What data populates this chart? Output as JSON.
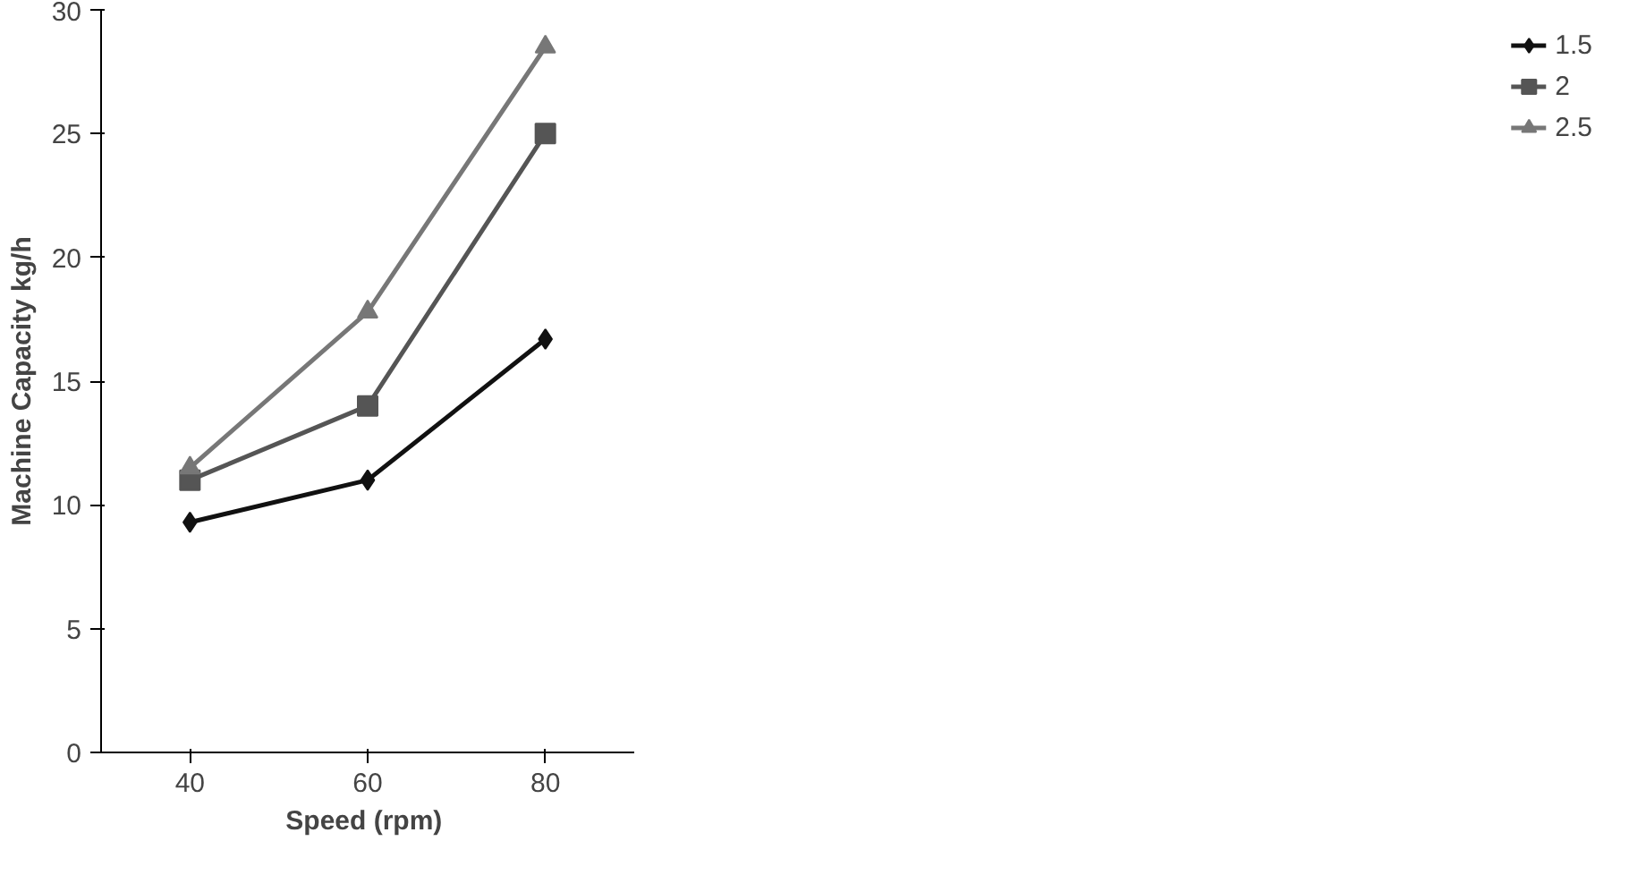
{
  "chart_data": {
    "type": "line",
    "xlabel": "Speed  (rpm)",
    "ylabel": "Machine Capacity kg/h",
    "categories": [
      "40",
      "60",
      "80"
    ],
    "series": [
      {
        "name": "1.5",
        "color": "#111111",
        "values": [
          9.3,
          11,
          16.7
        ],
        "marker": "diamond"
      },
      {
        "name": "2",
        "color": "#555555",
        "values": [
          11,
          14,
          25
        ],
        "marker": "square"
      },
      {
        "name": "2.5",
        "color": "#777777",
        "values": [
          11.5,
          17.8,
          28.5
        ],
        "marker": "triangle"
      }
    ],
    "ylim": [
      0,
      30
    ],
    "yticks": [
      0,
      5,
      10,
      15,
      20,
      25,
      30
    ],
    "grid": false,
    "legend": "right",
    "line_style": "solid"
  }
}
